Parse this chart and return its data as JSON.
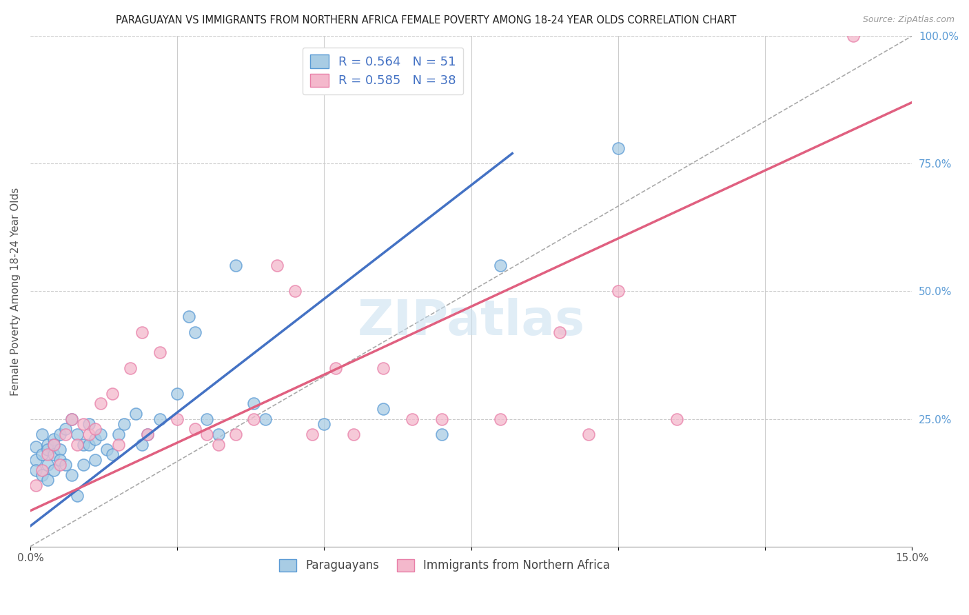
{
  "title": "PARAGUAYAN VS IMMIGRANTS FROM NORTHERN AFRICA FEMALE POVERTY AMONG 18-24 YEAR OLDS CORRELATION CHART",
  "source": "Source: ZipAtlas.com",
  "ylabel": "Female Poverty Among 18-24 Year Olds",
  "xlim": [
    0,
    0.15
  ],
  "ylim": [
    0,
    1.0
  ],
  "xtick_positions": [
    0.0,
    0.025,
    0.05,
    0.075,
    0.1,
    0.125,
    0.15
  ],
  "xticklabels": [
    "0.0%",
    "",
    "",
    "",
    "",
    "",
    "15.0%"
  ],
  "yticks_right": [
    0.25,
    0.5,
    0.75,
    1.0
  ],
  "ytick_right_labels": [
    "25.0%",
    "50.0%",
    "75.0%",
    "100.0%"
  ],
  "blue_R": "0.564",
  "blue_N": "51",
  "pink_R": "0.585",
  "pink_N": "38",
  "blue_color": "#a8cce4",
  "pink_color": "#f4b8cc",
  "blue_edge_color": "#5b9bd5",
  "pink_edge_color": "#e87fa8",
  "blue_line_color": "#4472C4",
  "pink_line_color": "#e06080",
  "ref_line_color": "#aaaaaa",
  "legend_label_blue": "Paraguayans",
  "legend_label_pink": "Immigrants from Northern Africa",
  "watermark": "ZIPatlas",
  "blue_scatter_x": [
    0.001,
    0.001,
    0.001,
    0.002,
    0.002,
    0.002,
    0.003,
    0.003,
    0.003,
    0.003,
    0.004,
    0.004,
    0.004,
    0.004,
    0.005,
    0.005,
    0.005,
    0.006,
    0.006,
    0.007,
    0.007,
    0.008,
    0.008,
    0.009,
    0.009,
    0.01,
    0.01,
    0.011,
    0.011,
    0.012,
    0.013,
    0.014,
    0.015,
    0.016,
    0.018,
    0.019,
    0.02,
    0.022,
    0.025,
    0.027,
    0.028,
    0.03,
    0.032,
    0.035,
    0.038,
    0.04,
    0.05,
    0.06,
    0.07,
    0.08,
    0.1
  ],
  "blue_scatter_y": [
    0.195,
    0.17,
    0.15,
    0.22,
    0.18,
    0.14,
    0.2,
    0.19,
    0.16,
    0.13,
    0.21,
    0.2,
    0.18,
    0.15,
    0.22,
    0.19,
    0.17,
    0.23,
    0.16,
    0.25,
    0.14,
    0.22,
    0.1,
    0.2,
    0.16,
    0.24,
    0.2,
    0.21,
    0.17,
    0.22,
    0.19,
    0.18,
    0.22,
    0.24,
    0.26,
    0.2,
    0.22,
    0.25,
    0.3,
    0.45,
    0.42,
    0.25,
    0.22,
    0.55,
    0.28,
    0.25,
    0.24,
    0.27,
    0.22,
    0.55,
    0.78
  ],
  "pink_scatter_x": [
    0.001,
    0.002,
    0.003,
    0.004,
    0.005,
    0.006,
    0.007,
    0.008,
    0.009,
    0.01,
    0.011,
    0.012,
    0.014,
    0.015,
    0.017,
    0.019,
    0.02,
    0.022,
    0.025,
    0.028,
    0.03,
    0.032,
    0.035,
    0.038,
    0.042,
    0.045,
    0.048,
    0.052,
    0.055,
    0.06,
    0.065,
    0.07,
    0.08,
    0.09,
    0.095,
    0.1,
    0.11,
    0.14
  ],
  "pink_scatter_y": [
    0.12,
    0.15,
    0.18,
    0.2,
    0.16,
    0.22,
    0.25,
    0.2,
    0.24,
    0.22,
    0.23,
    0.28,
    0.3,
    0.2,
    0.35,
    0.42,
    0.22,
    0.38,
    0.25,
    0.23,
    0.22,
    0.2,
    0.22,
    0.25,
    0.55,
    0.5,
    0.22,
    0.35,
    0.22,
    0.35,
    0.25,
    0.25,
    0.25,
    0.42,
    0.22,
    0.5,
    0.25,
    1.0
  ],
  "blue_line_x": [
    0.0,
    0.082
  ],
  "blue_line_y": [
    0.04,
    0.77
  ],
  "pink_line_x": [
    0.0,
    0.15
  ],
  "pink_line_y": [
    0.07,
    0.87
  ],
  "ref_line_x": [
    0.0,
    0.15
  ],
  "ref_line_y": [
    0.0,
    1.0
  ]
}
